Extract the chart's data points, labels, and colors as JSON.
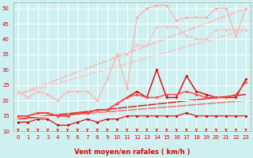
{
  "xlabel": "Vent moyen/en rafales ( km/h )",
  "xlim": [
    -0.5,
    23.5
  ],
  "ylim": [
    10,
    52
  ],
  "yticks": [
    10,
    15,
    20,
    25,
    30,
    35,
    40,
    45,
    50
  ],
  "xticks": [
    0,
    1,
    2,
    3,
    4,
    5,
    6,
    7,
    8,
    9,
    10,
    11,
    12,
    13,
    14,
    15,
    16,
    17,
    18,
    19,
    20,
    21,
    22,
    23
  ],
  "bg_color": "#cff0f0",
  "grid_color": "#ffffff",
  "series": [
    {
      "color": "#ffaaaa",
      "alpha": 1.0,
      "lw": 0.8,
      "marker": "D",
      "ms": 2.0,
      "data_x": [
        0,
        1,
        2,
        3,
        4,
        5,
        6,
        7,
        8,
        9,
        10,
        11,
        12,
        13,
        14,
        15,
        16,
        17,
        18,
        19,
        20,
        21,
        22,
        23
      ],
      "data_y": [
        23,
        21,
        23,
        22,
        20,
        23,
        23,
        23,
        20,
        27,
        35,
        24,
        47,
        50,
        51,
        51,
        46,
        47,
        47,
        47,
        50,
        50,
        41,
        50
      ]
    },
    {
      "color": "#ffbbbb",
      "alpha": 1.0,
      "lw": 0.8,
      "marker": "D",
      "ms": 2.0,
      "data_x": [
        0,
        1,
        2,
        3,
        4,
        5,
        6,
        7,
        8,
        9,
        10,
        11,
        12,
        13,
        14,
        15,
        16,
        17,
        18,
        19,
        20,
        21,
        22,
        23
      ],
      "data_y": [
        23,
        21,
        23,
        22,
        20,
        23,
        23,
        23,
        20,
        27,
        35,
        35,
        38,
        38,
        44,
        44,
        44,
        41,
        40,
        40,
        43,
        43,
        43,
        43
      ]
    },
    {
      "color": "#ffaaaa",
      "alpha": 0.85,
      "lw": 1.0,
      "marker": null,
      "ms": 0,
      "data_x": [
        0,
        23
      ],
      "data_y": [
        22,
        50
      ]
    },
    {
      "color": "#ffbbbb",
      "alpha": 0.85,
      "lw": 1.0,
      "marker": null,
      "ms": 0,
      "data_x": [
        0,
        23
      ],
      "data_y": [
        22,
        43
      ]
    },
    {
      "color": "#dd0000",
      "alpha": 1.0,
      "lw": 1.0,
      "marker": "D",
      "ms": 2.0,
      "data_x": [
        0,
        1,
        2,
        3,
        4,
        5,
        6,
        7,
        8,
        9,
        10,
        11,
        12,
        13,
        14,
        15,
        16,
        17,
        18,
        19,
        20,
        21,
        22,
        23
      ],
      "data_y": [
        15,
        15,
        16,
        16,
        15,
        15,
        16,
        16,
        17,
        17,
        19,
        21,
        23,
        21,
        30,
        21,
        21,
        28,
        23,
        22,
        21,
        21,
        21,
        27
      ]
    },
    {
      "color": "#ff4444",
      "alpha": 1.0,
      "lw": 1.0,
      "marker": "D",
      "ms": 2.0,
      "data_x": [
        0,
        1,
        2,
        3,
        4,
        5,
        6,
        7,
        8,
        9,
        10,
        11,
        12,
        13,
        14,
        15,
        16,
        17,
        18,
        19,
        20,
        21,
        22,
        23
      ],
      "data_y": [
        15,
        15,
        16,
        16,
        15,
        15,
        16,
        16,
        17,
        17,
        19,
        21,
        22,
        21,
        21,
        22,
        22,
        23,
        22,
        21,
        21,
        21,
        22,
        26
      ]
    },
    {
      "color": "#cc0000",
      "alpha": 0.9,
      "lw": 1.0,
      "marker": null,
      "ms": 0,
      "data_x": [
        0,
        23
      ],
      "data_y": [
        14,
        22
      ]
    },
    {
      "color": "#ff3333",
      "alpha": 0.7,
      "lw": 1.0,
      "marker": null,
      "ms": 0,
      "data_x": [
        0,
        23
      ],
      "data_y": [
        14,
        20
      ]
    },
    {
      "color": "#cc0000",
      "alpha": 1.0,
      "lw": 0.8,
      "marker": "D",
      "ms": 2.0,
      "data_x": [
        0,
        1,
        2,
        3,
        4,
        5,
        6,
        7,
        8,
        9,
        10,
        11,
        12,
        13,
        14,
        15,
        16,
        17,
        18,
        19,
        20,
        21,
        22,
        23
      ],
      "data_y": [
        13,
        13,
        14,
        14,
        12,
        12,
        13,
        14,
        13,
        14,
        14,
        15,
        15,
        15,
        15,
        15,
        15,
        16,
        15,
        15,
        15,
        15,
        15,
        15
      ]
    }
  ],
  "arrow_color": "#ff0000",
  "tick_color": "#dd0000",
  "xlabel_color": "#dd0000",
  "tick_fontsize": 5.0,
  "xlabel_fontsize": 6.0
}
